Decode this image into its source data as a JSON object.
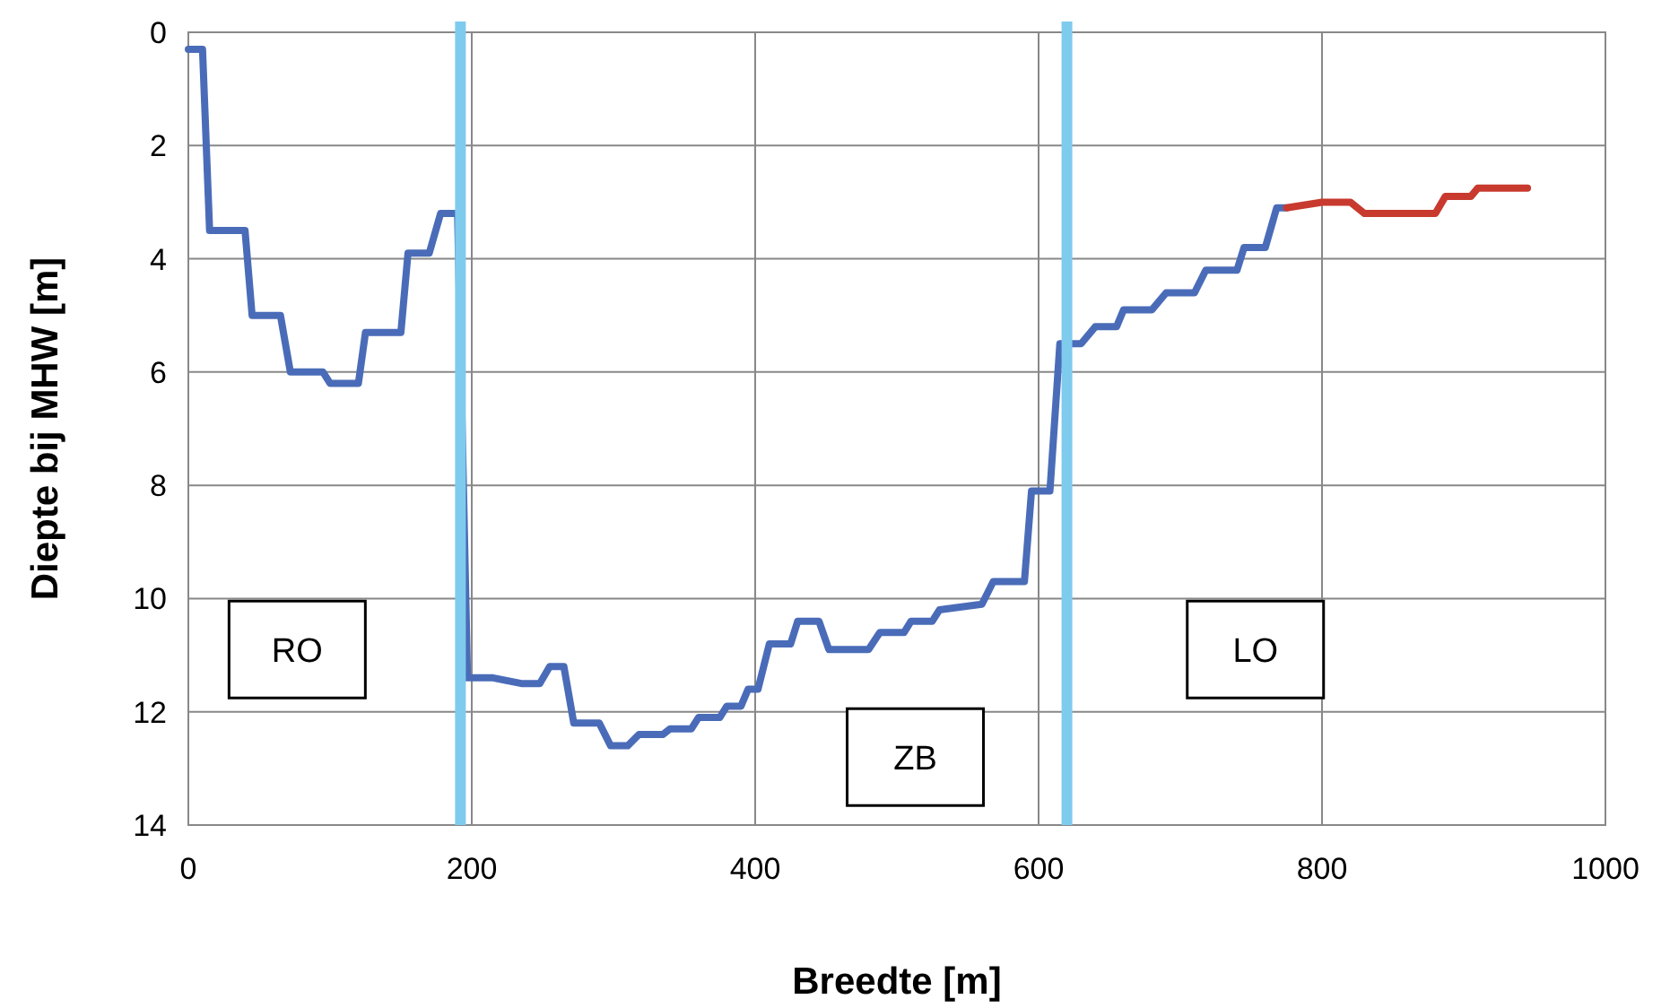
{
  "chart_data": {
    "type": "line",
    "xlabel": "Breedte [m]",
    "ylabel": "Diepte bij MHW [m]",
    "xlim": [
      0,
      1000
    ],
    "xticks": [
      0,
      200,
      400,
      600,
      800,
      1000
    ],
    "ylim": [
      14,
      0
    ],
    "yticks": [
      0,
      2,
      4,
      6,
      8,
      10,
      12,
      14
    ],
    "grid": true,
    "line_style": "solid",
    "series": [
      {
        "color": "#4a6cb8",
        "x": [
          0,
          10,
          15,
          40,
          45,
          65,
          72,
          95,
          100,
          120,
          125,
          150,
          155,
          170,
          178,
          190,
          197,
          215,
          235,
          248,
          255,
          265,
          272,
          290,
          298,
          310,
          318,
          335,
          340,
          355,
          360,
          375,
          380,
          390,
          395,
          402,
          410,
          425,
          430,
          445,
          452,
          480,
          488,
          505,
          510,
          525,
          530,
          560,
          568,
          590,
          595,
          608,
          615,
          630,
          640,
          655,
          660,
          680,
          690,
          710,
          718,
          740,
          745,
          760,
          768,
          775
        ],
        "values": [
          0.3,
          0.3,
          3.5,
          3.5,
          5.0,
          5.0,
          6.0,
          6.0,
          6.2,
          6.2,
          5.3,
          5.3,
          3.9,
          3.9,
          3.2,
          3.2,
          11.4,
          11.4,
          11.5,
          11.5,
          11.2,
          11.2,
          12.2,
          12.2,
          12.6,
          12.6,
          12.4,
          12.4,
          12.3,
          12.3,
          12.1,
          12.1,
          11.9,
          11.9,
          11.6,
          11.6,
          10.8,
          10.8,
          10.4,
          10.4,
          10.9,
          10.9,
          10.6,
          10.6,
          10.4,
          10.4,
          10.2,
          10.1,
          9.7,
          9.7,
          8.1,
          8.1,
          5.5,
          5.5,
          5.2,
          5.2,
          4.9,
          4.9,
          4.6,
          4.6,
          4.2,
          4.2,
          3.8,
          3.8,
          3.1,
          3.1
        ]
      },
      {
        "color": "#c83a2e",
        "x": [
          775,
          800,
          820,
          830,
          880,
          887,
          905,
          910,
          945
        ],
        "values": [
          3.1,
          3.0,
          3.0,
          3.2,
          3.2,
          2.9,
          2.9,
          2.75,
          2.75
        ]
      }
    ],
    "ref_lines": [
      {
        "axis": "x",
        "value": 192,
        "color": "#7fcbee"
      },
      {
        "axis": "x",
        "value": 620,
        "color": "#7fcbee"
      }
    ],
    "annotations": [
      "RO",
      "ZB",
      "LO"
    ]
  }
}
